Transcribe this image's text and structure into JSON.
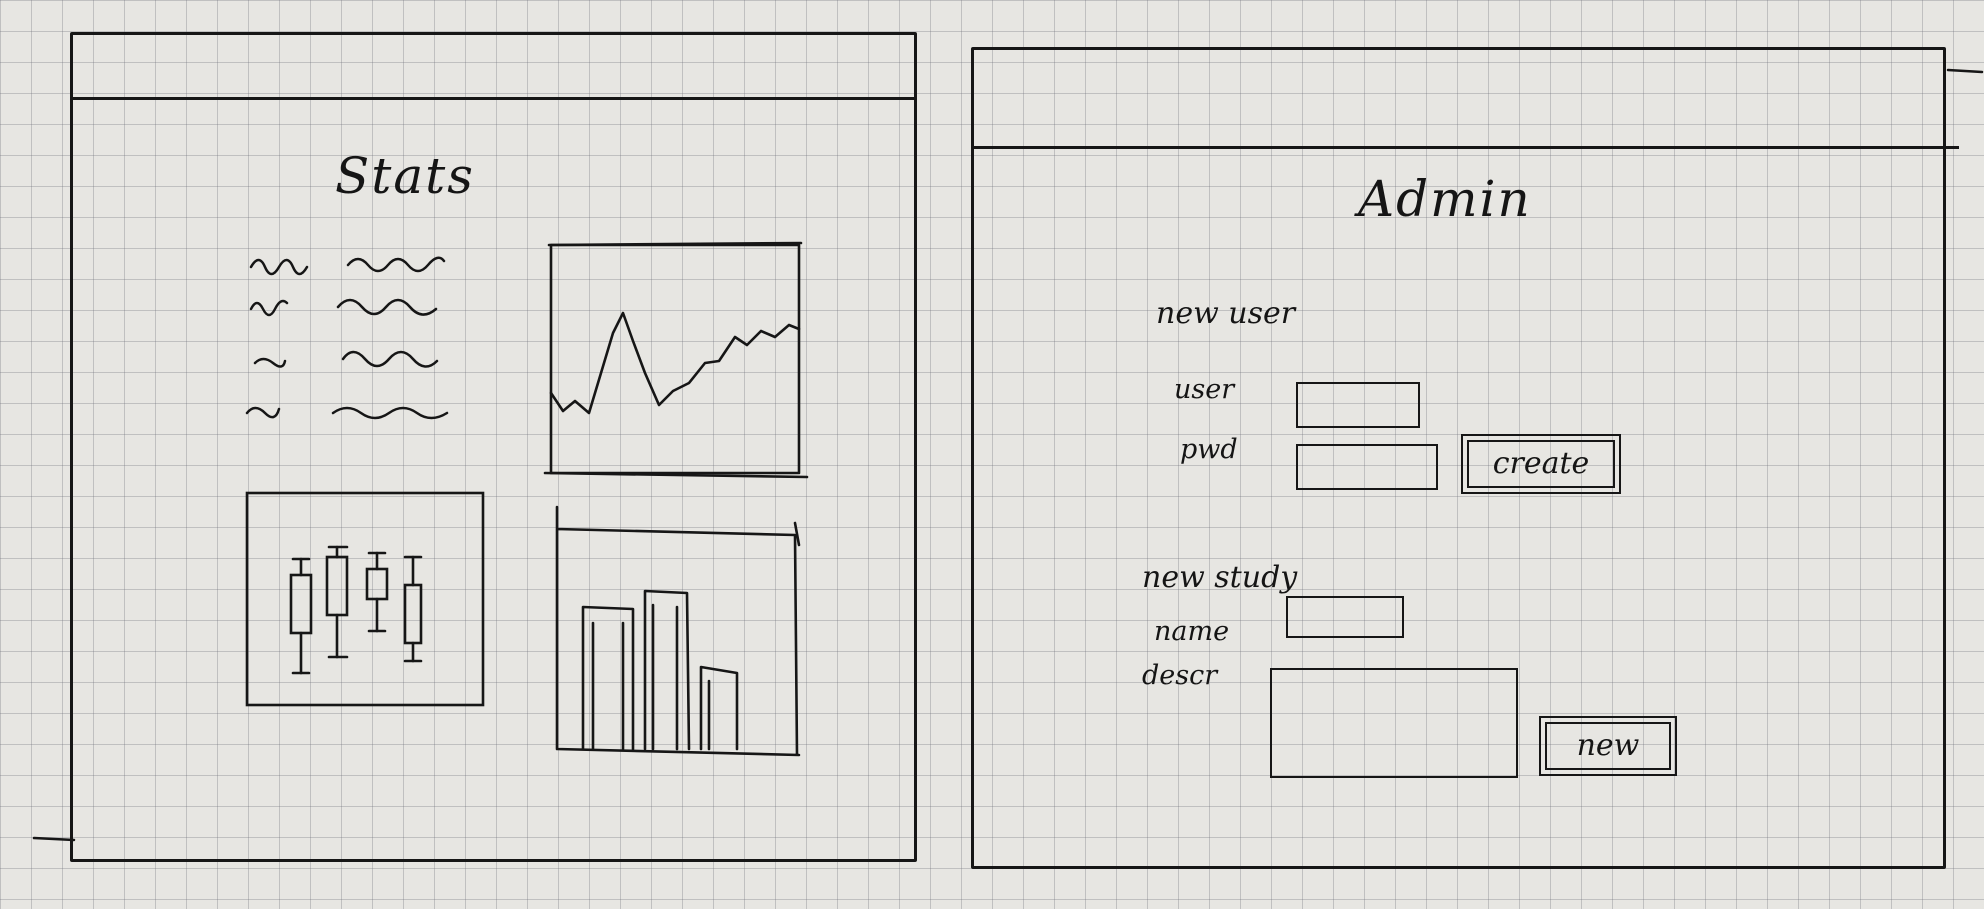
{
  "stats_panel": {
    "title": "Stats"
  },
  "admin_panel": {
    "title": "Admin",
    "new_user": {
      "heading": "new user",
      "user_label": "user",
      "user_value": "",
      "pwd_label": "pwd",
      "pwd_value": "",
      "create_label": "create"
    },
    "new_study": {
      "heading": "new study",
      "name_label": "name",
      "name_value": "",
      "descr_label": "descr",
      "descr_value": "",
      "new_label": "new"
    }
  }
}
